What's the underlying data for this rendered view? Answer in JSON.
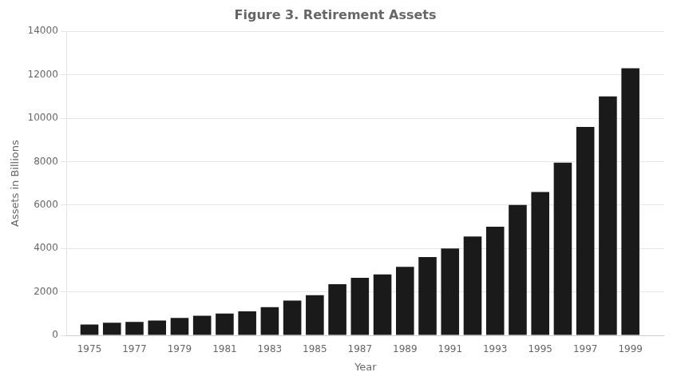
{
  "chart_data": {
    "type": "bar",
    "title": "Figure 3. Retirement Assets",
    "xlabel": "Year",
    "ylabel": "Assets in Billions",
    "x": [
      1975,
      1976,
      1977,
      1978,
      1979,
      1980,
      1981,
      1982,
      1983,
      1984,
      1985,
      1986,
      1987,
      1988,
      1989,
      1990,
      1991,
      1992,
      1993,
      1994,
      1995,
      1996,
      1997,
      1998,
      1999
    ],
    "values": [
      500,
      580,
      620,
      680,
      800,
      900,
      1000,
      1100,
      1300,
      1600,
      1850,
      2350,
      2650,
      2800,
      3150,
      3600,
      4000,
      4550,
      5000,
      6000,
      6600,
      7950,
      9600,
      11000,
      12300
    ],
    "color": "#1a1a1a",
    "xlim": [
      1974.0,
      2000.5
    ],
    "xticks": [
      1975,
      1977,
      1979,
      1981,
      1983,
      1985,
      1987,
      1989,
      1991,
      1993,
      1995,
      1997,
      1999
    ],
    "ylim": [
      0,
      14000
    ],
    "yticks": [
      0,
      2000,
      4000,
      6000,
      8000,
      10000,
      12000,
      14000
    ],
    "grid": "y"
  }
}
